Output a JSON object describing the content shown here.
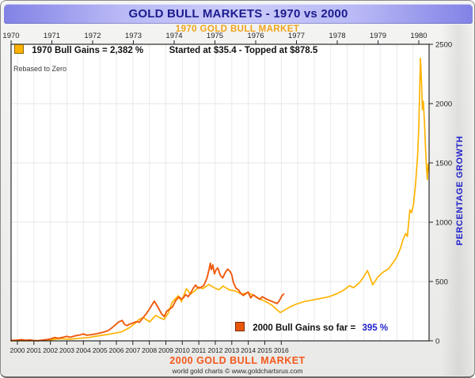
{
  "window": {
    "title": "GOLD BULL MARKETS - 1970 vs 2000"
  },
  "header": {
    "subtitle_top": "1970 GOLD BULL MARKET"
  },
  "footer": {
    "subtitle_bottom": "2000 GOLD BULL MARKET",
    "credit": "world gold charts © www.goldchartsrus.com"
  },
  "legend_1970": {
    "gains_label": "1970 Bull Gains = 2,382 %",
    "range_label": "Started at $35.4 - Topped at $878.5",
    "swatch_color": "#FFB300"
  },
  "note_rebased": "Rebased to Zero",
  "legend_2000": {
    "label": "2000 Bull Gains so far =",
    "value": "395 %",
    "swatch_color": "#E8560C",
    "value_color": "#2222CC"
  },
  "y_axis": {
    "label": "PERCENTAGE GROWTH",
    "label_color": "#2222CC"
  },
  "chart_data": {
    "type": "line",
    "title": "GOLD BULL MARKETS - 1970 vs 2000",
    "ylabel": "PERCENTAGE GROWTH",
    "ylim": [
      0,
      2500
    ],
    "y_ticks": [
      0,
      500,
      1000,
      1500,
      2000,
      2500
    ],
    "top_axis_years": [
      1970,
      1971,
      1972,
      1973,
      1974,
      1975,
      1976,
      1977,
      1978,
      1979,
      1980
    ],
    "bottom_axis_years": [
      2000,
      2001,
      2002,
      2003,
      2004,
      2005,
      2006,
      2007,
      2008,
      2009,
      2010,
      2011,
      2012,
      2013,
      2014,
      2015,
      2016
    ],
    "grid": true,
    "series": [
      {
        "name": "1970 Gold Bull Market (rebased % gain)",
        "color": "#FFB300",
        "axis": "top",
        "peak_pct": 2382,
        "points": [
          [
            1970.0,
            0
          ],
          [
            1970.2,
            3
          ],
          [
            1970.4,
            1
          ],
          [
            1970.6,
            2
          ],
          [
            1970.8,
            4
          ],
          [
            1971.0,
            10
          ],
          [
            1971.2,
            18
          ],
          [
            1971.45,
            14
          ],
          [
            1971.7,
            22
          ],
          [
            1971.9,
            28
          ],
          [
            1972.1,
            40
          ],
          [
            1972.3,
            50
          ],
          [
            1972.5,
            62
          ],
          [
            1972.7,
            75
          ],
          [
            1972.9,
            110
          ],
          [
            1973.05,
            150
          ],
          [
            1973.15,
            185
          ],
          [
            1973.25,
            195
          ],
          [
            1973.4,
            160
          ],
          [
            1973.55,
            215
          ],
          [
            1973.65,
            195
          ],
          [
            1973.75,
            180
          ],
          [
            1973.85,
            230
          ],
          [
            1973.95,
            325
          ],
          [
            1974.1,
            380
          ],
          [
            1974.18,
            330
          ],
          [
            1974.3,
            440
          ],
          [
            1974.4,
            395
          ],
          [
            1974.5,
            420
          ],
          [
            1974.6,
            455
          ],
          [
            1974.7,
            440
          ],
          [
            1974.85,
            475
          ],
          [
            1975.0,
            445
          ],
          [
            1975.1,
            430
          ],
          [
            1975.2,
            462
          ],
          [
            1975.35,
            430
          ],
          [
            1975.5,
            420
          ],
          [
            1975.65,
            395
          ],
          [
            1975.8,
            405
          ],
          [
            1975.95,
            385
          ],
          [
            1976.1,
            355
          ],
          [
            1976.25,
            330
          ],
          [
            1976.4,
            300
          ],
          [
            1976.5,
            268
          ],
          [
            1976.6,
            238
          ],
          [
            1976.7,
            258
          ],
          [
            1976.85,
            288
          ],
          [
            1977.0,
            310
          ],
          [
            1977.2,
            332
          ],
          [
            1977.4,
            345
          ],
          [
            1977.6,
            358
          ],
          [
            1977.8,
            372
          ],
          [
            1978.0,
            398
          ],
          [
            1978.15,
            425
          ],
          [
            1978.3,
            465
          ],
          [
            1978.4,
            448
          ],
          [
            1978.55,
            492
          ],
          [
            1978.65,
            540
          ],
          [
            1978.74,
            593
          ],
          [
            1978.87,
            473
          ],
          [
            1979.0,
            540
          ],
          [
            1979.13,
            580
          ],
          [
            1979.26,
            607
          ],
          [
            1979.35,
            650
          ],
          [
            1979.45,
            700
          ],
          [
            1979.55,
            780
          ],
          [
            1979.62,
            860
          ],
          [
            1979.68,
            905
          ],
          [
            1979.72,
            880
          ],
          [
            1979.78,
            1105
          ],
          [
            1979.82,
            1080
          ],
          [
            1979.87,
            1150
          ],
          [
            1979.92,
            1320
          ],
          [
            1979.97,
            1560
          ],
          [
            1980.0,
            1800
          ],
          [
            1980.04,
            2382
          ],
          [
            1980.07,
            2150
          ],
          [
            1980.09,
            1950
          ],
          [
            1980.11,
            2020
          ],
          [
            1980.14,
            1840
          ],
          [
            1980.17,
            1580
          ],
          [
            1980.19,
            1450
          ],
          [
            1980.21,
            1360
          ],
          [
            1980.23,
            1490
          ],
          [
            1980.25,
            1430
          ]
        ]
      },
      {
        "name": "2000 Gold Bull Market (rebased % gain)",
        "color": "#EE5A0D",
        "axis": "bottom",
        "current_pct": 395,
        "points": [
          [
            1999.62,
            3
          ],
          [
            2000.0,
            6
          ],
          [
            2000.25,
            10
          ],
          [
            2000.5,
            5
          ],
          [
            2000.75,
            8
          ],
          [
            2001.0,
            3
          ],
          [
            2001.25,
            1
          ],
          [
            2001.5,
            6
          ],
          [
            2001.75,
            10
          ],
          [
            2002.0,
            16
          ],
          [
            2002.25,
            28
          ],
          [
            2002.5,
            22
          ],
          [
            2002.75,
            30
          ],
          [
            2003.0,
            38
          ],
          [
            2003.2,
            30
          ],
          [
            2003.5,
            42
          ],
          [
            2003.8,
            50
          ],
          [
            2004.0,
            58
          ],
          [
            2004.2,
            48
          ],
          [
            2004.5,
            52
          ],
          [
            2004.8,
            60
          ],
          [
            2005.0,
            66
          ],
          [
            2005.2,
            72
          ],
          [
            2005.5,
            86
          ],
          [
            2005.75,
            112
          ],
          [
            2006.0,
            142
          ],
          [
            2006.15,
            160
          ],
          [
            2006.35,
            172
          ],
          [
            2006.5,
            138
          ],
          [
            2006.65,
            128
          ],
          [
            2006.8,
            140
          ],
          [
            2007.0,
            150
          ],
          [
            2007.2,
            162
          ],
          [
            2007.4,
            156
          ],
          [
            2007.6,
            192
          ],
          [
            2007.8,
            226
          ],
          [
            2008.0,
            266
          ],
          [
            2008.15,
            302
          ],
          [
            2008.3,
            335
          ],
          [
            2008.45,
            300
          ],
          [
            2008.6,
            264
          ],
          [
            2008.75,
            226
          ],
          [
            2008.9,
            205
          ],
          [
            2009.05,
            248
          ],
          [
            2009.2,
            265
          ],
          [
            2009.4,
            285
          ],
          [
            2009.6,
            340
          ],
          [
            2009.8,
            370
          ],
          [
            2009.95,
            352
          ],
          [
            2010.1,
            368
          ],
          [
            2010.2,
            390
          ],
          [
            2010.35,
            372
          ],
          [
            2010.5,
            400
          ],
          [
            2010.65,
            440
          ],
          [
            2010.8,
            470
          ],
          [
            2010.95,
            445
          ],
          [
            2011.1,
            448
          ],
          [
            2011.3,
            466
          ],
          [
            2011.5,
            530
          ],
          [
            2011.62,
            600
          ],
          [
            2011.7,
            655
          ],
          [
            2011.76,
            600
          ],
          [
            2011.85,
            640
          ],
          [
            2011.95,
            565
          ],
          [
            2012.05,
            600
          ],
          [
            2012.15,
            615
          ],
          [
            2012.3,
            555
          ],
          [
            2012.45,
            530
          ],
          [
            2012.6,
            575
          ],
          [
            2012.75,
            605
          ],
          [
            2012.9,
            585
          ],
          [
            2013.0,
            555
          ],
          [
            2013.1,
            490
          ],
          [
            2013.25,
            445
          ],
          [
            2013.4,
            430
          ],
          [
            2013.55,
            400
          ],
          [
            2013.7,
            382
          ],
          [
            2013.85,
            398
          ],
          [
            2014.0,
            412
          ],
          [
            2014.15,
            362
          ],
          [
            2014.3,
            388
          ],
          [
            2014.5,
            368
          ],
          [
            2014.7,
            350
          ],
          [
            2014.85,
            372
          ],
          [
            2015.0,
            360
          ],
          [
            2015.15,
            348
          ],
          [
            2015.3,
            340
          ],
          [
            2015.45,
            332
          ],
          [
            2015.6,
            322
          ],
          [
            2015.75,
            315
          ],
          [
            2015.85,
            332
          ],
          [
            2015.95,
            355
          ],
          [
            2016.05,
            382
          ],
          [
            2016.15,
            395
          ]
        ]
      }
    ]
  }
}
